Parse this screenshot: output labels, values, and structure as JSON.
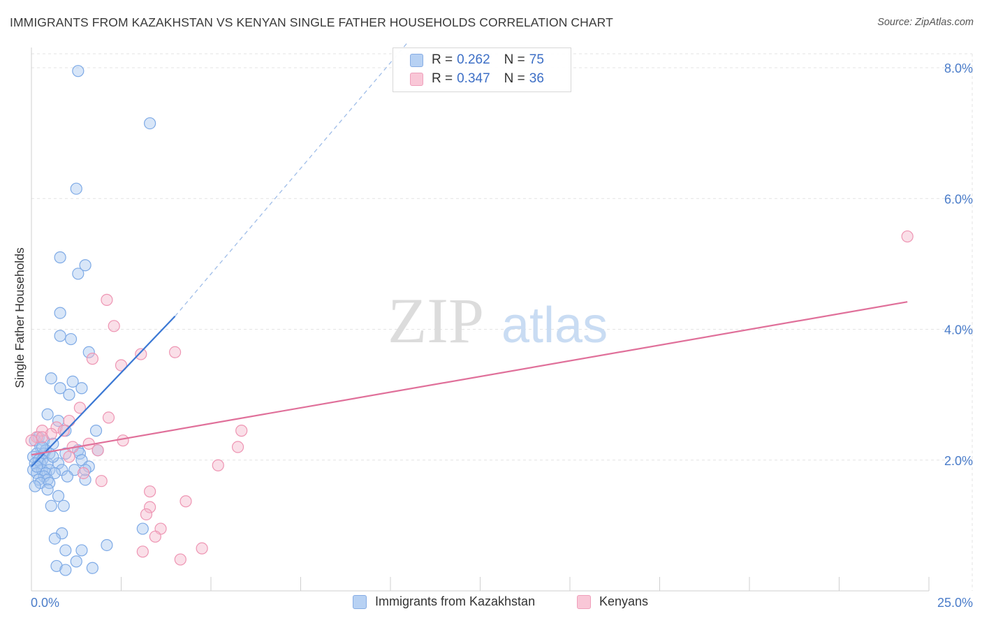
{
  "title": "IMMIGRANTS FROM KAZAKHSTAN VS KENYAN SINGLE FATHER HOUSEHOLDS CORRELATION CHART",
  "source": "Source: ZipAtlas.com",
  "watermark": {
    "zip": "ZIP",
    "atlas": "atlas"
  },
  "legend_stats": {
    "r_label": "R =",
    "n_label": "N =",
    "series": [
      {
        "r": "0.262",
        "n": "75"
      },
      {
        "r": "0.347",
        "n": "36"
      }
    ]
  },
  "colors": {
    "blue_fill": "#a9c8f0",
    "blue_stroke": "#7eaae6",
    "blue_line": "#3b78d4",
    "pink_fill": "#f5b7cb",
    "pink_stroke": "#ee95b3",
    "pink_line": "#e0709a",
    "axis_text": "#4a7cc9",
    "grid": "#e3e3e3"
  },
  "chart_data": {
    "type": "scatter",
    "title": "IMMIGRANTS FROM KAZAKHSTAN VS KENYAN SINGLE FATHER HOUSEHOLDS CORRELATION CHART",
    "xlabel": "",
    "ylabel": "Single Father Households",
    "xlim": [
      0,
      25
    ],
    "ylim": [
      0,
      8.4
    ],
    "x_tick_labels": [
      "0.0%",
      "25.0%"
    ],
    "y_ticks": [
      2,
      4,
      6,
      8
    ],
    "y_tick_labels": [
      "2.0%",
      "4.0%",
      "6.0%",
      "8.0%"
    ],
    "grid": true,
    "legend_position": "top-center",
    "series": [
      {
        "name": "Immigrants from Kazakhstan",
        "color": "#a9c8f0",
        "trend": {
          "x": [
            0.0,
            4.0
          ],
          "y": [
            1.9,
            4.2
          ],
          "dashed_to": [
            10.5,
            8.4
          ]
        },
        "points": [
          [
            1.3,
            7.95
          ],
          [
            3.3,
            7.15
          ],
          [
            1.25,
            6.15
          ],
          [
            0.8,
            5.1
          ],
          [
            1.5,
            4.98
          ],
          [
            1.3,
            4.85
          ],
          [
            0.8,
            4.25
          ],
          [
            0.8,
            3.9
          ],
          [
            1.1,
            3.85
          ],
          [
            1.6,
            3.65
          ],
          [
            0.55,
            3.25
          ],
          [
            1.15,
            3.2
          ],
          [
            0.8,
            3.1
          ],
          [
            1.4,
            3.1
          ],
          [
            1.05,
            3.0
          ],
          [
            0.45,
            2.7
          ],
          [
            0.75,
            2.6
          ],
          [
            0.95,
            2.45
          ],
          [
            1.8,
            2.45
          ],
          [
            0.2,
            2.35
          ],
          [
            0.1,
            2.3
          ],
          [
            0.35,
            2.3
          ],
          [
            0.6,
            2.25
          ],
          [
            0.25,
            2.2
          ],
          [
            0.4,
            2.15
          ],
          [
            1.3,
            2.15
          ],
          [
            1.85,
            2.15
          ],
          [
            0.15,
            2.1
          ],
          [
            0.35,
            2.1
          ],
          [
            0.5,
            2.1
          ],
          [
            0.95,
            2.1
          ],
          [
            1.35,
            2.1
          ],
          [
            0.05,
            2.05
          ],
          [
            0.2,
            2.0
          ],
          [
            0.3,
            2.0
          ],
          [
            1.4,
            2.0
          ],
          [
            0.1,
            1.95
          ],
          [
            0.25,
            1.95
          ],
          [
            0.45,
            1.95
          ],
          [
            0.75,
            1.95
          ],
          [
            1.6,
            1.9
          ],
          [
            0.05,
            1.85
          ],
          [
            0.3,
            1.85
          ],
          [
            0.5,
            1.85
          ],
          [
            0.85,
            1.85
          ],
          [
            1.2,
            1.85
          ],
          [
            0.15,
            1.8
          ],
          [
            0.4,
            1.8
          ],
          [
            0.65,
            1.8
          ],
          [
            0.35,
            1.75
          ],
          [
            1.0,
            1.75
          ],
          [
            0.2,
            1.7
          ],
          [
            0.45,
            1.7
          ],
          [
            1.5,
            1.7
          ],
          [
            0.25,
            1.65
          ],
          [
            0.5,
            1.65
          ],
          [
            0.1,
            1.6
          ],
          [
            0.45,
            1.55
          ],
          [
            0.75,
            1.45
          ],
          [
            0.55,
            1.3
          ],
          [
            0.9,
            1.3
          ],
          [
            3.1,
            0.95
          ],
          [
            0.85,
            0.88
          ],
          [
            0.65,
            0.8
          ],
          [
            2.1,
            0.7
          ],
          [
            0.95,
            0.62
          ],
          [
            1.4,
            0.62
          ],
          [
            1.25,
            0.45
          ],
          [
            0.7,
            0.38
          ],
          [
            1.7,
            0.35
          ],
          [
            0.95,
            0.32
          ],
          [
            0.3,
            2.2
          ],
          [
            0.6,
            2.05
          ],
          [
            0.15,
            1.9
          ],
          [
            1.5,
            1.85
          ]
        ]
      },
      {
        "name": "Kenyans",
        "color": "#f5b7cb",
        "trend": {
          "x": [
            0.0,
            24.4
          ],
          "y": [
            2.08,
            4.42
          ]
        },
        "points": [
          [
            24.4,
            5.42
          ],
          [
            2.1,
            4.45
          ],
          [
            2.3,
            4.05
          ],
          [
            4.0,
            3.65
          ],
          [
            3.05,
            3.62
          ],
          [
            1.7,
            3.55
          ],
          [
            2.5,
            3.45
          ],
          [
            1.35,
            2.8
          ],
          [
            2.15,
            2.65
          ],
          [
            1.05,
            2.6
          ],
          [
            0.7,
            2.5
          ],
          [
            0.3,
            2.45
          ],
          [
            0.9,
            2.45
          ],
          [
            0.55,
            2.4
          ],
          [
            0.15,
            2.35
          ],
          [
            0.3,
            2.35
          ],
          [
            0.0,
            2.3
          ],
          [
            2.55,
            2.3
          ],
          [
            1.6,
            2.25
          ],
          [
            5.85,
            2.45
          ],
          [
            1.15,
            2.2
          ],
          [
            1.85,
            2.15
          ],
          [
            5.75,
            2.2
          ],
          [
            1.05,
            2.05
          ],
          [
            5.2,
            1.92
          ],
          [
            1.45,
            1.8
          ],
          [
            1.95,
            1.68
          ],
          [
            3.3,
            1.52
          ],
          [
            4.3,
            1.37
          ],
          [
            3.3,
            1.28
          ],
          [
            3.2,
            1.17
          ],
          [
            3.6,
            0.95
          ],
          [
            3.45,
            0.83
          ],
          [
            4.75,
            0.65
          ],
          [
            3.1,
            0.6
          ],
          [
            4.15,
            0.48
          ]
        ]
      }
    ]
  }
}
